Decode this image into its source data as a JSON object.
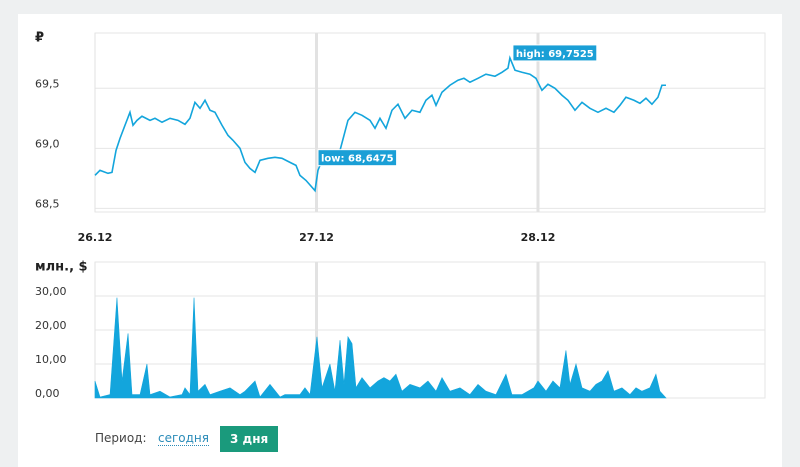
{
  "chart_data": [
    {
      "type": "line",
      "axis_label": "₽",
      "color": "#13a5dc",
      "x": [
        0,
        0.54,
        1.41,
        1.84,
        2.28,
        2.71,
        3.25,
        3.79,
        4.12,
        4.55,
        5.09,
        5.96,
        6.5,
        7.26,
        8.13,
        8.99,
        9.75,
        10.29,
        10.83,
        11.38,
        11.92,
        12.46,
        13.0,
        13.76,
        14.41,
        14.95,
        15.71,
        16.25,
        16.79,
        17.34,
        17.88,
        18.74,
        19.5,
        20.26,
        21.13,
        21.78,
        22.21,
        22.86,
        23.84,
        24.16,
        24.6,
        25.46,
        26.55,
        27.41,
        28.17,
        28.93,
        29.8,
        30.34,
        30.88,
        31.53,
        32.18,
        32.83,
        33.59,
        34.35,
        35.21,
        35.86,
        36.51,
        36.95,
        37.6,
        38.46,
        39.33,
        39.98,
        40.63,
        41.5,
        42.36,
        43.34,
        44.1,
        44.75,
        44.96,
        45.51,
        46.26,
        47.13,
        47.78,
        48.43,
        49.08,
        49.84,
        50.6,
        51.25,
        52.01,
        52.77,
        53.63,
        54.5,
        55.37,
        56.23,
        56.88,
        57.53,
        58.4,
        59.05,
        59.7,
        60.35,
        61.0,
        61.43,
        61.87
      ],
      "values": [
        68.775,
        68.817,
        68.792,
        68.8,
        68.983,
        69.083,
        69.192,
        69.3,
        69.192,
        69.233,
        69.267,
        69.233,
        69.25,
        69.217,
        69.25,
        69.233,
        69.2,
        69.25,
        69.383,
        69.333,
        69.4,
        69.317,
        69.3,
        69.192,
        69.108,
        69.067,
        69.0,
        68.883,
        68.833,
        68.8,
        68.9,
        68.917,
        68.925,
        68.917,
        68.883,
        68.858,
        68.775,
        68.733,
        68.6475,
        68.817,
        68.9,
        68.883,
        68.983,
        69.233,
        69.3,
        69.275,
        69.233,
        69.167,
        69.25,
        69.167,
        69.317,
        69.367,
        69.25,
        69.317,
        69.3,
        69.4,
        69.442,
        69.358,
        69.467,
        69.525,
        69.567,
        69.583,
        69.55,
        69.583,
        69.617,
        69.6,
        69.633,
        69.667,
        69.7525,
        69.65,
        69.633,
        69.617,
        69.583,
        69.483,
        69.533,
        69.5,
        69.442,
        69.4,
        69.317,
        69.383,
        69.333,
        69.3,
        69.333,
        69.3,
        69.358,
        69.425,
        69.4,
        69.375,
        69.417,
        69.367,
        69.425,
        69.525,
        69.525
      ],
      "xlim": [
        0,
        72.6
      ],
      "xticks": [
        {
          "value": 0,
          "label": "26.12"
        },
        {
          "value": 24,
          "label": "27.12"
        },
        {
          "value": 48,
          "label": "28.12"
        }
      ],
      "ylim": [
        68.47,
        69.96
      ],
      "yticks": [
        {
          "value": 68.5,
          "label": "68,5"
        },
        {
          "value": 69,
          "label": "69,0"
        },
        {
          "value": 69.5,
          "label": "69,5"
        }
      ],
      "grid": true,
      "annotations": [
        {
          "text": "low: 68,6475",
          "x": 23.84,
          "y": 68.6475
        },
        {
          "text": "high: 69,7525",
          "x": 44.96,
          "y": 69.7525
        }
      ]
    },
    {
      "type": "area",
      "axis_label": "млн., $",
      "color": "#13a5dc",
      "x": [
        0,
        0.54,
        1.63,
        2.38,
        2.93,
        3.58,
        4.01,
        4.88,
        5.63,
        5.96,
        7.04,
        8.13,
        9.43,
        9.75,
        10.29,
        10.73,
        11.16,
        11.92,
        12.46,
        13.54,
        14.63,
        15.71,
        16.25,
        17.34,
        17.88,
        18.96,
        20.05,
        20.59,
        22.21,
        22.75,
        23.3,
        24.05,
        24.6,
        25.46,
        26.0,
        26.55,
        26.98,
        27.41,
        27.85,
        28.28,
        28.93,
        29.8,
        30.66,
        31.31,
        31.96,
        32.61,
        33.26,
        34.13,
        35.21,
        36.08,
        36.95,
        37.6,
        38.46,
        39.55,
        40.63,
        41.5,
        42.36,
        43.45,
        44.53,
        45.18,
        46.26,
        47.56,
        48.0,
        48.87,
        49.62,
        50.38,
        51.03,
        51.47,
        52.12,
        52.77,
        53.63,
        54.28,
        54.93,
        55.59,
        56.23,
        57.1,
        57.97,
        58.62,
        59.27,
        60.13,
        60.78,
        61.21,
        61.87
      ],
      "values": [
        5,
        0.3,
        1,
        29.5,
        5,
        19,
        1,
        1,
        10,
        1,
        2,
        0.3,
        1,
        3,
        1,
        29.5,
        2,
        4,
        1,
        2,
        3,
        1,
        2,
        5,
        0.3,
        4,
        0.3,
        1,
        1,
        3,
        1,
        18,
        3,
        10,
        2,
        17,
        4,
        18,
        16,
        3,
        6,
        3,
        5,
        6,
        5,
        7,
        2,
        4,
        3,
        5,
        2,
        6,
        2,
        3,
        1,
        4,
        2,
        1,
        7,
        1,
        1,
        3,
        5,
        2,
        5,
        3,
        14,
        4,
        10,
        3,
        2,
        4,
        5,
        8,
        2,
        3,
        1,
        3,
        2,
        3,
        7,
        2,
        0
      ],
      "xlim": [
        0,
        72.6
      ],
      "xticks": [
        0,
        24,
        48
      ],
      "ylim": [
        0,
        40
      ],
      "yticks": [
        {
          "value": 0,
          "label": "0,00"
        },
        {
          "value": 10,
          "label": "10,00"
        },
        {
          "value": 20,
          "label": "20,00"
        },
        {
          "value": 30,
          "label": "30,00"
        }
      ],
      "grid": true
    }
  ],
  "period": {
    "label": "Период:",
    "options": [
      "сегодня",
      "3 дня"
    ],
    "active": 1
  }
}
